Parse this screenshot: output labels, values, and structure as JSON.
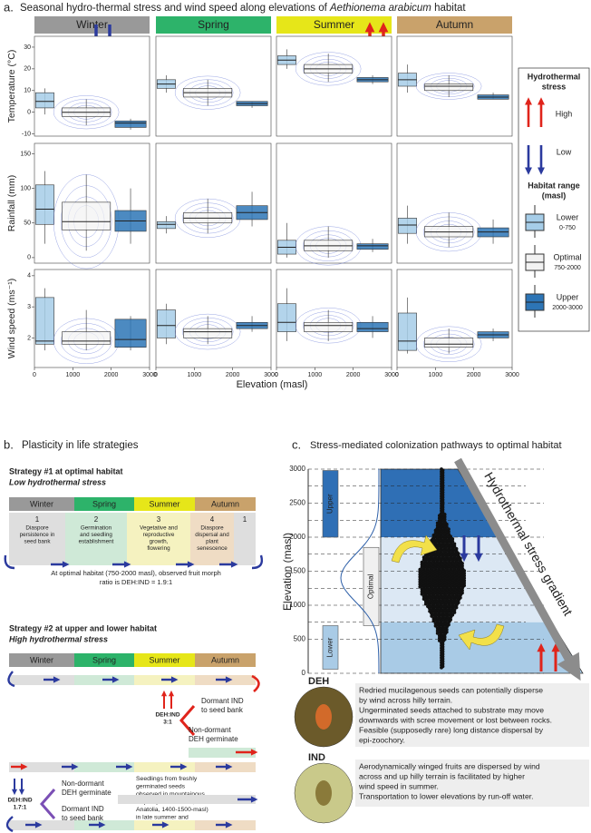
{
  "panel_a": {
    "label": "a.",
    "title": [
      "Seasonal hydro-thermal stress and wind speed along elevations of ",
      "Aethionema arabicum",
      " habitat"
    ],
    "seasons": [
      {
        "name": "Winter",
        "color": "#999999"
      },
      {
        "name": "Spring",
        "color": "#2db36a"
      },
      {
        "name": "Summer",
        "color": "#e6e619"
      },
      {
        "name": "Autumn",
        "color": "#c9a26b"
      }
    ],
    "x_label": "Elevation (masl)",
    "xlim": [
      0,
      3000
    ],
    "xticks": [
      0,
      1000,
      2000,
      3000
    ],
    "groups": [
      {
        "name": "Lower",
        "range": "0-750",
        "color": "#a6cde8"
      },
      {
        "name": "Optimal",
        "range": "750-2000",
        "color": "#f2f2f2"
      },
      {
        "name": "Upper",
        "range": "2000-3000",
        "color": "#2d75b6"
      }
    ],
    "panels": [
      {
        "y_label": "Temperature (°C)",
        "ylim": [
          -11,
          35
        ],
        "yticks": [
          -10,
          0,
          10,
          20,
          30
        ],
        "boxes": [
          [
            [
              -1,
              2,
              5,
              9,
              11
            ],
            [
              -6,
              -2,
              0,
              2,
              6
            ],
            [
              -8,
              -7,
              -5,
              -4,
              -3
            ]
          ],
          [
            [
              9,
              11,
              13,
              15,
              17
            ],
            [
              3,
              7,
              9,
              11,
              15
            ],
            [
              2,
              3,
              4,
              5,
              5
            ]
          ],
          [
            [
              20,
              22,
              24,
              26,
              29
            ],
            [
              14,
              18,
              20,
              22,
              27
            ],
            [
              13,
              14,
              15,
              16,
              17
            ]
          ],
          [
            [
              9,
              12,
              15,
              18,
              22
            ],
            [
              7,
              10,
              12,
              13,
              17
            ],
            [
              6,
              6,
              7,
              8,
              9
            ]
          ]
        ]
      },
      {
        "y_label": "Rainfall (mm)",
        "ylim": [
          -8,
          165
        ],
        "yticks": [
          0,
          50,
          100,
          150
        ],
        "boxes": [
          [
            [
              20,
              48,
              70,
              105,
              125
            ],
            [
              10,
              40,
              52,
              80,
              120
            ],
            [
              20,
              38,
              53,
              68,
              100
            ]
          ],
          [
            [
              35,
              42,
              48,
              52,
              60
            ],
            [
              35,
              50,
              57,
              65,
              85
            ],
            [
              45,
              55,
              65,
              75,
              95
            ]
          ],
          [
            [
              0,
              5,
              15,
              25,
              50
            ],
            [
              0,
              10,
              17,
              25,
              45
            ],
            [
              8,
              12,
              17,
              20,
              27
            ]
          ],
          [
            [
              20,
              35,
              47,
              57,
              75
            ],
            [
              15,
              30,
              37,
              45,
              65
            ],
            [
              20,
              30,
              37,
              43,
              55
            ]
          ]
        ]
      },
      {
        "y_label": "Wind speed (ms⁻¹)",
        "ylim": [
          1.05,
          4.2
        ],
        "yticks": [
          2,
          3,
          4
        ],
        "boxes": [
          [
            [
              1.6,
              1.8,
              1.9,
              3.3,
              3.6
            ],
            [
              1.6,
              1.8,
              1.9,
              2.2,
              2.9
            ],
            [
              1.6,
              1.7,
              1.95,
              2.6,
              2.7
            ]
          ],
          [
            [
              1.8,
              2.0,
              2.4,
              2.9,
              3.1
            ],
            [
              1.8,
              2.0,
              2.2,
              2.3,
              2.7
            ],
            [
              2.2,
              2.3,
              2.4,
              2.5,
              2.7
            ]
          ],
          [
            [
              1.9,
              2.2,
              2.5,
              3.1,
              3.6
            ],
            [
              1.9,
              2.2,
              2.4,
              2.5,
              2.9
            ],
            [
              2.0,
              2.2,
              2.3,
              2.5,
              2.7
            ]
          ],
          [
            [
              1.5,
              1.6,
              1.9,
              2.8,
              3.3
            ],
            [
              1.5,
              1.7,
              1.8,
              2.0,
              2.3
            ],
            [
              1.9,
              2.0,
              2.1,
              2.2,
              2.3
            ]
          ]
        ]
      }
    ],
    "legend": {
      "stress_title": [
        "Hydrothermal",
        "stress"
      ],
      "high": "High",
      "low": "Low",
      "range_title": [
        "Habitat range",
        "(masl)"
      ]
    }
  },
  "panel_b": {
    "label": "b.",
    "title": "Plasticity in life strategies",
    "strategy1": {
      "title": "Strategy #1 at optimal habitat",
      "subtitle": "Low hydrothermal stress",
      "stages": [
        {
          "number": "1",
          "lines": [
            "Diaspore",
            "persistence in",
            "seed bank"
          ]
        },
        {
          "number": "2",
          "lines": [
            "Germination",
            "and seedling",
            "establishment"
          ]
        },
        {
          "number": "3",
          "lines": [
            "Vegetative and",
            "reproductive",
            "growth,",
            "flowering"
          ]
        },
        {
          "number": "4",
          "lines": [
            "Diaspore",
            "dispersal and",
            "plant",
            "senescence"
          ]
        },
        {
          "number": "1",
          "lines": []
        }
      ],
      "note": [
        "At optimal habitat (750-2000 masl), observed fruit morph",
        "ratio is DEH:IND = 1.9:1"
      ]
    },
    "strategy2": {
      "title": "Strategy #2 at upper and lower habitat",
      "subtitle": "High hydrothermal stress",
      "ratio_a": [
        "DEH:IND",
        "3:1"
      ],
      "dormant_a": [
        "Dormant IND",
        "to seed bank"
      ],
      "nondormant_a": [
        "Non-dormant",
        "DEH germinate"
      ],
      "ratio_b": [
        "DEH:IND",
        "1.7:1"
      ],
      "nondormant_b": [
        "Non-dormant",
        "DEH germinate"
      ],
      "dormant_b": [
        "Dormant IND",
        "to seed bank"
      ],
      "note": [
        "Seedlings from freshly",
        "germinated seeds",
        "observed in mountainous",
        "slopes (Hizan district, East",
        "Anatolia, 1400-1500-masl)",
        "in late summer and",
        "autumn, 2017."
      ]
    }
  },
  "panel_c": {
    "label": "c.",
    "title": "Stress-mediated colonization pathways to optimal habitat",
    "y_label": "Elevation (masl)",
    "ylim": [
      0,
      3000
    ],
    "yticks": [
      0,
      500,
      1000,
      1500,
      2000,
      2500,
      3000
    ],
    "zones": [
      "Upper",
      "Optimal",
      "Lower"
    ],
    "gradient_label": "Hydrothermal stress gradient",
    "deh": {
      "name": "DEH",
      "lines": [
        "Redried mucilagenous seeds can potentially disperse",
        "by wind across hilly terrain.",
        "Ungerminated seeds attached to substrate may move",
        "downwards with scree movement or lost between rocks.",
        "Feasible (supposedly rare) long distance dispersal by",
        "epi-zoochory."
      ]
    },
    "ind": {
      "name": "IND",
      "lines": [
        "Aerodynamically winged fruits are dispersed by wind",
        "across and up hilly terrain is facilitated by higher",
        "wind speed in summer.",
        "Transportation to lower elevations by run-off water."
      ]
    }
  }
}
